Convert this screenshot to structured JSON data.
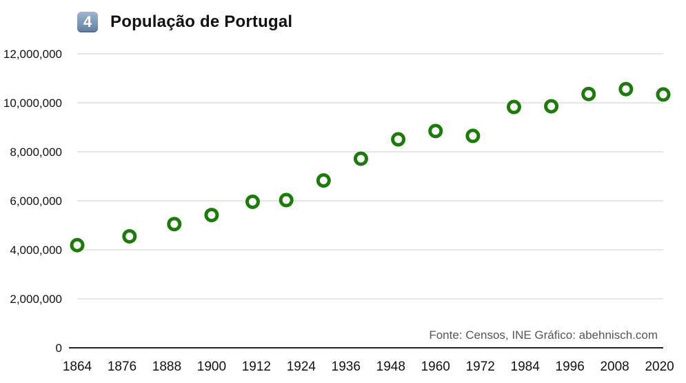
{
  "header": {
    "badge": "4",
    "title": "População de Portugal"
  },
  "source_note": "Fonte: Censos, INE  Gráfico: abehnisch.com",
  "colors": {
    "marker": "#1e7a0c",
    "grid": "#cccccc",
    "axis": "#222222"
  },
  "chart_data": {
    "type": "scatter",
    "title": "População de Portugal",
    "xlabel": "",
    "ylabel": "",
    "xlim": [
      1864,
      2021
    ],
    "ylim": [
      0,
      12000000
    ],
    "x_ticks": [
      1864,
      1876,
      1888,
      1900,
      1912,
      1924,
      1936,
      1948,
      1960,
      1972,
      1984,
      1996,
      2008,
      2020
    ],
    "y_ticks": [
      0,
      2000000,
      4000000,
      6000000,
      8000000,
      10000000,
      12000000
    ],
    "y_tick_labels": [
      "0",
      "2,000,000",
      "4,000,000",
      "6,000,000",
      "8,000,000",
      "10,000,000",
      "12,000,000"
    ],
    "grid": true,
    "series": [
      {
        "x": [
          1864,
          1878,
          1890,
          1900,
          1911,
          1920,
          1930,
          1940,
          1950,
          1960,
          1970,
          1981,
          1991,
          2001,
          2011,
          2021
        ],
        "y": [
          4190000,
          4550000,
          5050000,
          5420000,
          5960000,
          6030000,
          6830000,
          7720000,
          8510000,
          8850000,
          8650000,
          9830000,
          9860000,
          10360000,
          10560000,
          10340000
        ]
      }
    ]
  }
}
